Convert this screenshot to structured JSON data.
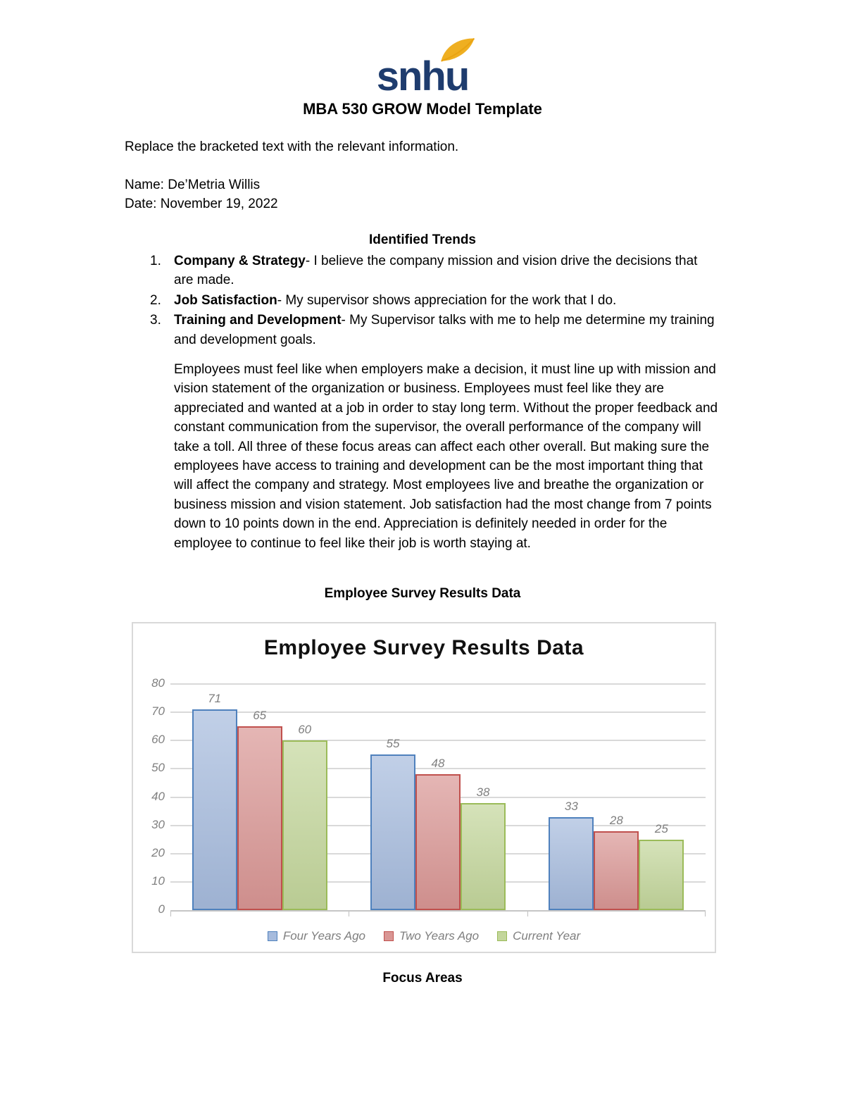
{
  "document": {
    "logo_text": "snhu",
    "title": "MBA 530 GROW Model Template",
    "intro": "Replace the bracketed text with the relevant information.",
    "name_line": "Name: De’Metria Willis",
    "date_line": "Date: November 19, 2022",
    "trends_heading": "Identified Trends",
    "trends": [
      {
        "number": "1.",
        "lead": "Company & Strategy",
        "text": "- I believe the company mission and vision drive the decisions that are made."
      },
      {
        "number": "2.",
        "lead": "Job Satisfaction",
        "text": "- My supervisor shows appreciation for the work that I do."
      },
      {
        "number": "3.",
        "lead": "Training and Development",
        "text": "- My Supervisor talks with me to help me determine my training and development goals."
      }
    ],
    "paragraph": "Employees must feel like when employers make a decision, it must line up with mission and vision statement of the organization or business. Employees must feel like they are appreciated and wanted at a job in order to stay long term. Without the proper feedback and constant communication from the supervisor, the overall performance of the company will take a toll. All three of these focus areas can affect each other overall. But making sure the employees have access to training and development can be the most important thing that will affect the company and strategy. Most employees live and breathe the organization or business mission and vision statement. Job satisfaction had the most change from 7 points down to 10 points down in the end. Appreciation is definitely needed in order for the employee to continue to feel like their job is worth staying at.",
    "chart_section_heading": "Employee Survey Results Data",
    "chart_caption": "Focus Areas"
  },
  "chart_data": {
    "type": "bar",
    "title": "Employee Survey Results Data",
    "categories": [
      "",
      "",
      ""
    ],
    "series": [
      {
        "name": "Four Years Ago",
        "values": [
          71,
          55,
          33
        ],
        "fill": "#a6bbdd",
        "border": "#4f81bd"
      },
      {
        "name": "Two Years Ago",
        "values": [
          65,
          48,
          28
        ],
        "fill": "#d99694",
        "border": "#c0504d"
      },
      {
        "name": "Current Year",
        "values": [
          60,
          38,
          25
        ],
        "fill": "#c3d69b",
        "border": "#9bbb59"
      }
    ],
    "ylim": [
      0,
      80
    ],
    "yticks": [
      0,
      10,
      20,
      30,
      40,
      50,
      60,
      70,
      80
    ],
    "grid": true,
    "legend_position": "bottom",
    "xlabel": "",
    "ylabel": ""
  },
  "colors": {
    "logo_navy": "#1e3c6e",
    "logo_gold": "#efaf21",
    "label_gray": "#7f7f7f",
    "gridline": "#d9d9d9",
    "chart_border": "#d9d9d9"
  }
}
